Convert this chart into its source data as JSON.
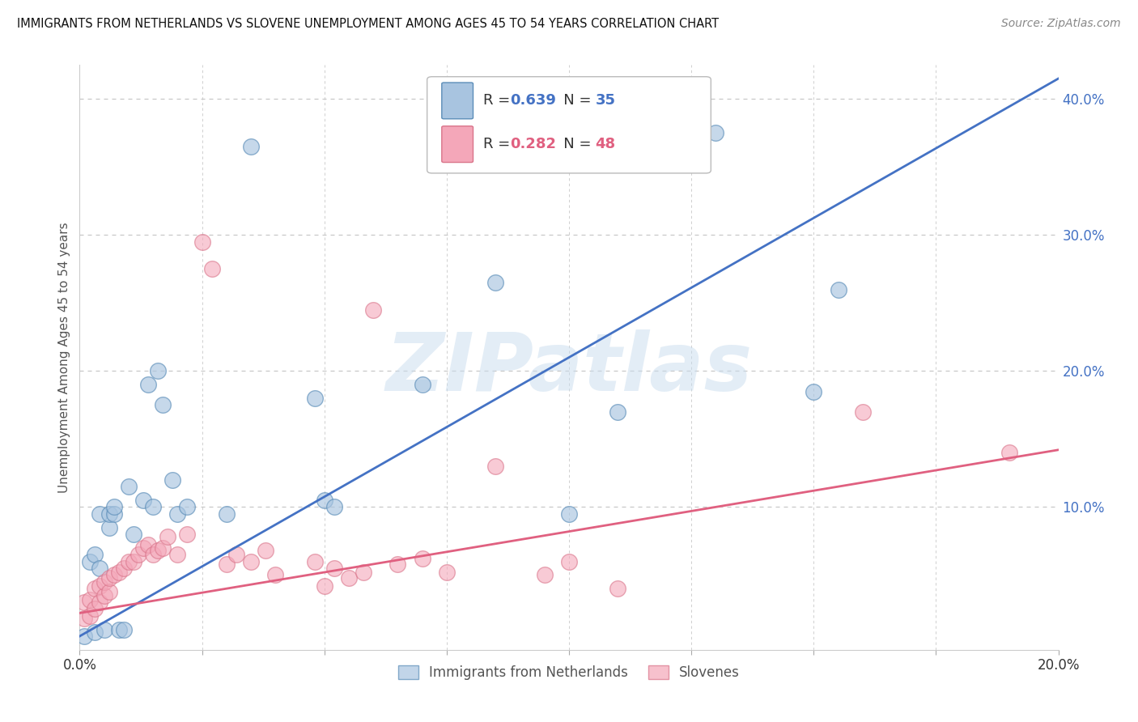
{
  "title": "IMMIGRANTS FROM NETHERLANDS VS SLOVENE UNEMPLOYMENT AMONG AGES 45 TO 54 YEARS CORRELATION CHART",
  "source": "Source: ZipAtlas.com",
  "ylabel": "Unemployment Among Ages 45 to 54 years",
  "xlim": [
    0.0,
    0.2
  ],
  "ylim": [
    -0.005,
    0.425
  ],
  "legend1_label": "Immigrants from Netherlands",
  "legend2_label": "Slovenes",
  "R1": 0.639,
  "N1": 35,
  "R2": 0.282,
  "N2": 48,
  "color_blue_fill": "#A8C4E0",
  "color_blue_edge": "#5B8DB8",
  "color_blue_line": "#4472C4",
  "color_pink_fill": "#F4A7B9",
  "color_pink_edge": "#D9748A",
  "color_pink_line": "#E06080",
  "blue_scatter_x": [
    0.001,
    0.002,
    0.003,
    0.003,
    0.004,
    0.004,
    0.005,
    0.006,
    0.006,
    0.007,
    0.007,
    0.008,
    0.009,
    0.01,
    0.011,
    0.013,
    0.014,
    0.015,
    0.016,
    0.017,
    0.019,
    0.02,
    0.022,
    0.03,
    0.035,
    0.048,
    0.05,
    0.052,
    0.07,
    0.085,
    0.1,
    0.11,
    0.13,
    0.15,
    0.155
  ],
  "blue_scatter_y": [
    0.005,
    0.06,
    0.008,
    0.065,
    0.055,
    0.095,
    0.01,
    0.085,
    0.095,
    0.095,
    0.1,
    0.01,
    0.01,
    0.115,
    0.08,
    0.105,
    0.19,
    0.1,
    0.2,
    0.175,
    0.12,
    0.095,
    0.1,
    0.095,
    0.365,
    0.18,
    0.105,
    0.1,
    0.19,
    0.265,
    0.095,
    0.17,
    0.375,
    0.185,
    0.26
  ],
  "pink_scatter_x": [
    0.001,
    0.001,
    0.002,
    0.002,
    0.003,
    0.003,
    0.004,
    0.004,
    0.005,
    0.005,
    0.006,
    0.006,
    0.007,
    0.008,
    0.009,
    0.01,
    0.011,
    0.012,
    0.013,
    0.014,
    0.015,
    0.016,
    0.017,
    0.018,
    0.02,
    0.022,
    0.025,
    0.027,
    0.03,
    0.032,
    0.035,
    0.038,
    0.04,
    0.048,
    0.05,
    0.052,
    0.055,
    0.058,
    0.06,
    0.065,
    0.07,
    0.075,
    0.085,
    0.095,
    0.1,
    0.11,
    0.16,
    0.19
  ],
  "pink_scatter_y": [
    0.018,
    0.03,
    0.02,
    0.032,
    0.025,
    0.04,
    0.03,
    0.042,
    0.035,
    0.045,
    0.038,
    0.048,
    0.05,
    0.052,
    0.055,
    0.06,
    0.06,
    0.065,
    0.07,
    0.072,
    0.065,
    0.068,
    0.07,
    0.078,
    0.065,
    0.08,
    0.295,
    0.275,
    0.058,
    0.065,
    0.06,
    0.068,
    0.05,
    0.06,
    0.042,
    0.055,
    0.048,
    0.052,
    0.245,
    0.058,
    0.062,
    0.052,
    0.13,
    0.05,
    0.06,
    0.04,
    0.17,
    0.14
  ],
  "blue_line_x0": 0.0,
  "blue_line_y0": 0.005,
  "blue_line_x1": 0.2,
  "blue_line_y1": 0.415,
  "pink_line_x0": 0.0,
  "pink_line_y0": 0.022,
  "pink_line_x1": 0.2,
  "pink_line_y1": 0.142,
  "watermark_text": "ZIPatlas",
  "background_color": "#FFFFFF",
  "grid_color": "#C8C8C8",
  "xtick_positions": [
    0.0,
    0.025,
    0.05,
    0.075,
    0.1,
    0.125,
    0.15,
    0.175,
    0.2
  ]
}
